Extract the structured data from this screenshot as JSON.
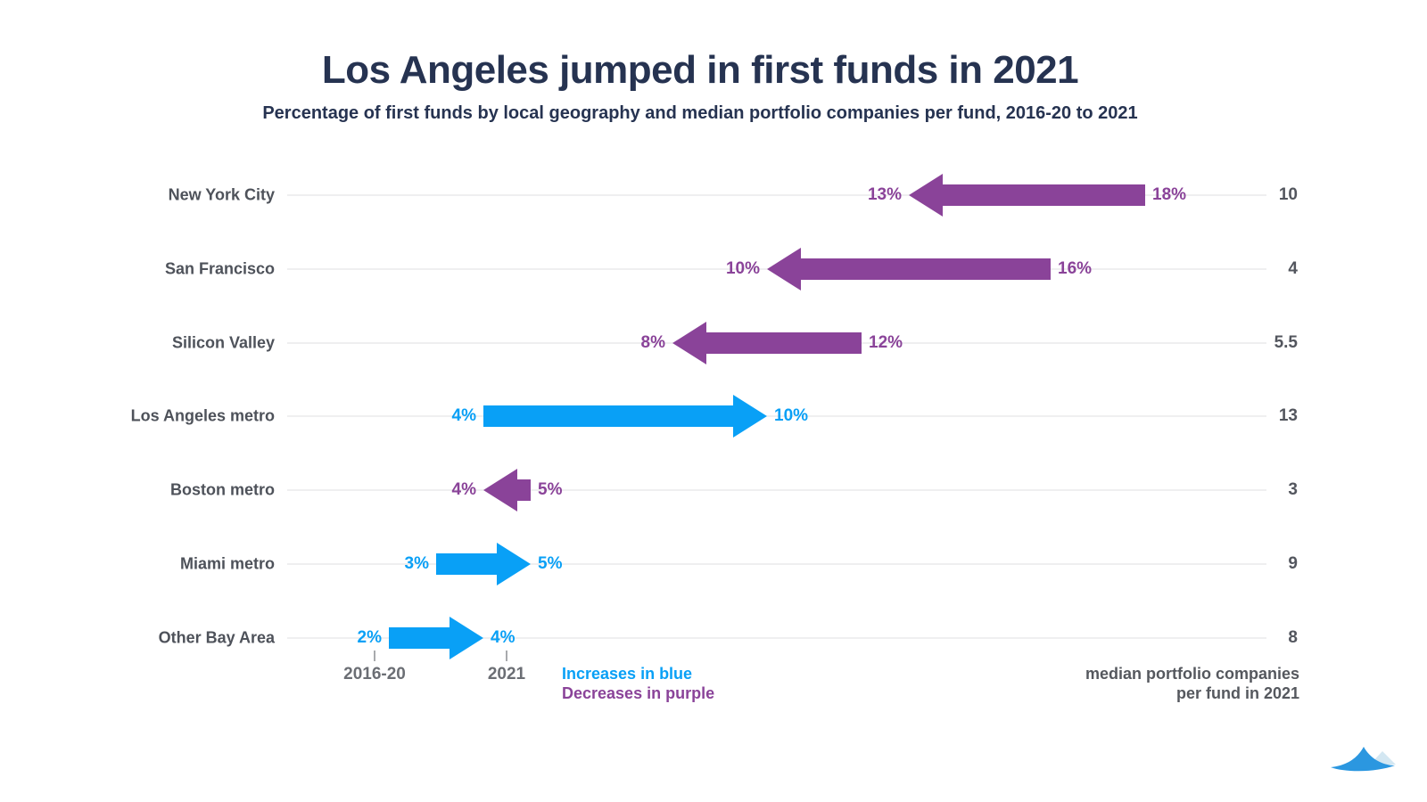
{
  "title": "Los Angeles jumped in first funds in 2021",
  "subtitle": "Percentage of first funds by local geography and median portfolio companies per fund, 2016-20 to 2021",
  "axis": {
    "start_label": "2016-20",
    "end_label": "2021"
  },
  "legend": {
    "increase_label": "Increases in blue",
    "decrease_label": "Decreases in purple"
  },
  "right_note": "median portfolio companies\nper fund in 2021",
  "colors": {
    "increase_blue": "#09A0F6",
    "decrease_purple": "#8A4399",
    "title_navy": "#263351",
    "row_label_gray": "#4E525A",
    "median_gray": "#53565E",
    "axis_gray": "#6B6E74",
    "note_gray": "#55585E",
    "gridline": "#DFDFE1",
    "logo_blue": "#2B97E0",
    "logo_light": "#D3E7F2"
  },
  "chart_data": {
    "type": "arrow",
    "title": "Los Angeles jumped in first funds in 2021",
    "subtitle": "Percentage of first funds by local geography and median portfolio companies per fund, 2016-20 to 2021",
    "categories": [
      "New York City",
      "San Francisco",
      "Silicon Valley",
      "Los Angeles metro",
      "Boston metro",
      "Miami metro",
      "Other Bay Area"
    ],
    "series": [
      {
        "name": "2016-20 share of first funds (%)",
        "values": [
          18,
          16,
          12,
          4,
          5,
          3,
          2
        ]
      },
      {
        "name": "2021 share of first funds (%)",
        "values": [
          13,
          10,
          8,
          10,
          4,
          5,
          4
        ]
      },
      {
        "name": "median portfolio companies per fund in 2021",
        "values": [
          10,
          4,
          5.5,
          13,
          3,
          9,
          8
        ]
      }
    ],
    "directions": [
      "decrease",
      "decrease",
      "decrease",
      "increase",
      "decrease",
      "increase",
      "increase"
    ],
    "value_suffix": "%",
    "xlim": [
      0,
      20
    ],
    "grid": "horizontal-row-lines",
    "legend_position": "bottom-center",
    "x_axis_ticks": [
      "2016-20",
      "2021"
    ]
  }
}
